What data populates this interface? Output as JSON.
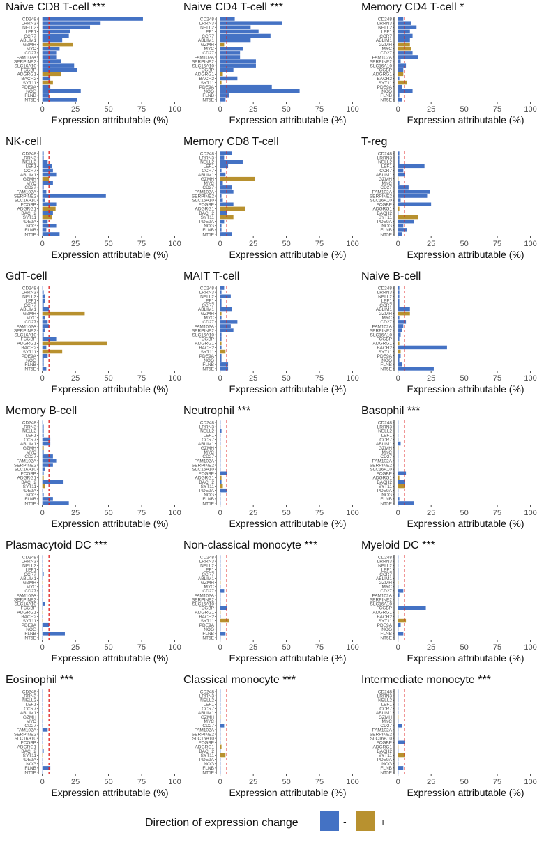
{
  "chart_data": {
    "type": "bar",
    "orientation": "horizontal",
    "genes": [
      "CD248",
      "LRRN3",
      "NELL2",
      "LEF1",
      "CCR7",
      "ABLIM1",
      "GZMH",
      "MYC",
      "CD27",
      "FAM102A",
      "SERPINE2",
      "SLC16A10",
      "FCGBP",
      "ADGRG1",
      "BACH2",
      "SYT11",
      "PDE9A",
      "NOG",
      "FLNB",
      "NT5E"
    ],
    "xlabel": "Expression attributable (%)",
    "xticks": [
      0,
      25,
      50,
      75,
      100
    ],
    "xlim": [
      -3,
      105
    ],
    "reference_line": 5,
    "legend": {
      "title": "Direction of expression change",
      "entries": [
        {
          "label": "-",
          "color": "#4472C4"
        },
        {
          "label": "+",
          "color": "#B8912F"
        }
      ]
    },
    "colors": {
      "neg": "#4472C4",
      "pos": "#B8912F",
      "reference": "#E01E1E",
      "axis": "#222222"
    },
    "panels": [
      {
        "title": "Naive CD8 T-cell ***",
        "values": [
          76,
          44,
          36,
          21,
          20,
          15,
          23,
          13,
          11,
          11,
          14,
          24,
          26,
          14,
          6,
          8,
          6,
          29,
          5,
          26
        ],
        "dirs": [
          "-",
          "-",
          "-",
          "-",
          "-",
          "-",
          "+",
          "-",
          "-",
          "-",
          "-",
          "-",
          "-",
          "+",
          "-",
          "+",
          "-",
          "-",
          "-",
          "-"
        ]
      },
      {
        "title": "Naive CD4 T-cell ***",
        "values": [
          11,
          47,
          23,
          29,
          38,
          23,
          3,
          17,
          15,
          15,
          27,
          27,
          10,
          2,
          13,
          1,
          39,
          60,
          7,
          4
        ],
        "dirs": [
          "-",
          "-",
          "-",
          "-",
          "-",
          "-",
          "+",
          "-",
          "-",
          "-",
          "-",
          "-",
          "-",
          "+",
          "-",
          "+",
          "-",
          "-",
          "-",
          "-"
        ]
      },
      {
        "title": "Memory CD4 T-cell *",
        "values": [
          4,
          10,
          14,
          9,
          11,
          9,
          9,
          10,
          11,
          15,
          2,
          6,
          4,
          4,
          1,
          7,
          3,
          11,
          1,
          3
        ],
        "dirs": [
          "-",
          "-",
          "-",
          "-",
          "-",
          "-",
          "+",
          "+",
          "-",
          "-",
          "-",
          "-",
          "-",
          "+",
          "-",
          "+",
          "-",
          "-",
          "-",
          "-"
        ]
      },
      {
        "title": "NK-cell",
        "values": [
          1,
          1,
          4,
          7,
          8,
          11,
          5,
          8,
          1,
          3,
          48,
          2,
          11,
          10,
          8,
          7,
          4,
          11,
          3,
          13
        ],
        "dirs": [
          "-",
          "-",
          "-",
          "-",
          "-",
          "-",
          "+",
          "-",
          "-",
          "-",
          "-",
          "-",
          "-",
          "+",
          "-",
          "+",
          "-",
          "-",
          "-",
          "-"
        ]
      },
      {
        "title": "Memory CD8 T-cell",
        "values": [
          9,
          3,
          17,
          6,
          1,
          4,
          26,
          2,
          9,
          10,
          1,
          2,
          10,
          19,
          5,
          10,
          3,
          1,
          1,
          9
        ],
        "dirs": [
          "-",
          "-",
          "-",
          "-",
          "-",
          "-",
          "+",
          "-",
          "-",
          "-",
          "-",
          "-",
          "-",
          "+",
          "-",
          "+",
          "-",
          "-",
          "-",
          "-"
        ]
      },
      {
        "title": "T-reg",
        "values": [
          1,
          1,
          1,
          20,
          4,
          5,
          0,
          1,
          8,
          24,
          22,
          2,
          25,
          1,
          0,
          15,
          12,
          4,
          7,
          3
        ],
        "dirs": [
          "-",
          "-",
          "-",
          "-",
          "-",
          "-",
          "+",
          "-",
          "-",
          "-",
          "-",
          "-",
          "-",
          "+",
          "-",
          "+",
          "-",
          "-",
          "-",
          "-"
        ]
      },
      {
        "title": "GdT-cell",
        "values": [
          0,
          1,
          2,
          2,
          1,
          5,
          32,
          2,
          4,
          5,
          2,
          1,
          11,
          49,
          3,
          15,
          4,
          1,
          1,
          3
        ],
        "dirs": [
          "-",
          "-",
          "-",
          "-",
          "-",
          "-",
          "+",
          "-",
          "-",
          "-",
          "-",
          "-",
          "-",
          "+",
          "-",
          "+",
          "-",
          "-",
          "-",
          "-"
        ]
      },
      {
        "title": "MAIT T-cell",
        "values": [
          3,
          1,
          8,
          1,
          1,
          9,
          1,
          1,
          13,
          8,
          10,
          1,
          1,
          1,
          1,
          4,
          1,
          1,
          6,
          6
        ],
        "dirs": [
          "-",
          "-",
          "-",
          "-",
          "-",
          "-",
          "+",
          "-",
          "-",
          "-",
          "-",
          "-",
          "-",
          "+",
          "-",
          "+",
          "-",
          "-",
          "-",
          "-"
        ]
      },
      {
        "title": "Naive B-cell",
        "values": [
          1,
          1,
          1,
          1,
          1,
          9,
          9,
          1,
          6,
          4,
          3,
          2,
          1,
          1,
          37,
          2,
          2,
          1,
          3,
          27
        ],
        "dirs": [
          "-",
          "-",
          "-",
          "-",
          "-",
          "-",
          "+",
          "-",
          "-",
          "-",
          "-",
          "-",
          "-",
          "+",
          "-",
          "+",
          "-",
          "-",
          "-",
          "-"
        ]
      },
      {
        "title": "Memory B-cell",
        "values": [
          0,
          1,
          1,
          1,
          6,
          6,
          1,
          1,
          8,
          11,
          8,
          2,
          1,
          1,
          16,
          2,
          0,
          1,
          8,
          20
        ],
        "dirs": [
          "-",
          "-",
          "-",
          "-",
          "-",
          "-",
          "+",
          "-",
          "-",
          "-",
          "-",
          "-",
          "-",
          "+",
          "-",
          "+",
          "-",
          "-",
          "-",
          "-"
        ]
      },
      {
        "title": "Neutrophil ***",
        "values": [
          0,
          0,
          1,
          0,
          0,
          0,
          0,
          0,
          0,
          0,
          0,
          0,
          5,
          1,
          1,
          2,
          5,
          0,
          0,
          0
        ],
        "dirs": [
          "-",
          "-",
          "-",
          "-",
          "-",
          "-",
          "+",
          "-",
          "-",
          "-",
          "-",
          "-",
          "-",
          "+",
          "-",
          "+",
          "-",
          "-",
          "-",
          "-"
        ]
      },
      {
        "title": "Basophil ***",
        "values": [
          0,
          0,
          0,
          0,
          0,
          2,
          0,
          0,
          0,
          0,
          0,
          0,
          6,
          1,
          5,
          5,
          0,
          0,
          1,
          12
        ],
        "dirs": [
          "-",
          "-",
          "-",
          "-",
          "-",
          "-",
          "+",
          "-",
          "-",
          "-",
          "-",
          "-",
          "-",
          "+",
          "-",
          "+",
          "-",
          "-",
          "-",
          "-"
        ]
      },
      {
        "title": "Plasmacytoid DC ***",
        "values": [
          0,
          0,
          0,
          0,
          1,
          0,
          0,
          0,
          0,
          0,
          0,
          2,
          0,
          0,
          0,
          0,
          5,
          0,
          17,
          0
        ],
        "dirs": [
          "-",
          "-",
          "-",
          "-",
          "-",
          "-",
          "+",
          "-",
          "-",
          "-",
          "-",
          "-",
          "-",
          "+",
          "-",
          "+",
          "-",
          "-",
          "-",
          "-"
        ]
      },
      {
        "title": "Non-classical monocyte ***",
        "values": [
          0,
          0,
          0,
          0,
          0,
          0,
          0,
          0,
          3,
          0,
          0,
          0,
          5,
          0,
          0,
          7,
          0,
          0,
          4,
          0
        ],
        "dirs": [
          "-",
          "-",
          "-",
          "-",
          "-",
          "-",
          "+",
          "-",
          "-",
          "-",
          "-",
          "-",
          "-",
          "+",
          "-",
          "+",
          "-",
          "-",
          "-",
          "-"
        ]
      },
      {
        "title": "Myeloid DC ***",
        "values": [
          0,
          0,
          0,
          0,
          0,
          0,
          0,
          0,
          4,
          1,
          0,
          0,
          21,
          0,
          0,
          6,
          2,
          0,
          4,
          0
        ],
        "dirs": [
          "-",
          "-",
          "-",
          "-",
          "-",
          "-",
          "+",
          "-",
          "-",
          "-",
          "-",
          "-",
          "-",
          "+",
          "-",
          "+",
          "-",
          "-",
          "-",
          "-"
        ]
      },
      {
        "title": "Eosinophil ***",
        "values": [
          0,
          0,
          0,
          0,
          0,
          0,
          0,
          0,
          0,
          4,
          0,
          0,
          0,
          0,
          1,
          0,
          0,
          0,
          6,
          0
        ],
        "dirs": [
          "-",
          "-",
          "-",
          "-",
          "-",
          "-",
          "+",
          "-",
          "-",
          "-",
          "-",
          "-",
          "-",
          "+",
          "-",
          "+",
          "-",
          "-",
          "-",
          "-"
        ]
      },
      {
        "title": "Classical monocyte ***",
        "values": [
          0,
          0,
          0,
          0,
          0,
          0,
          0,
          0,
          3,
          0,
          0,
          0,
          0,
          1,
          0,
          4,
          0,
          0,
          0,
          0
        ],
        "dirs": [
          "-",
          "-",
          "-",
          "-",
          "-",
          "-",
          "+",
          "-",
          "-",
          "-",
          "-",
          "-",
          "-",
          "+",
          "-",
          "+",
          "-",
          "-",
          "-",
          "-"
        ]
      },
      {
        "title": "Intermediate monocyte ***",
        "values": [
          0,
          0,
          0,
          0,
          0,
          0,
          0,
          0,
          3,
          0,
          0,
          0,
          5,
          0,
          0,
          5,
          0,
          0,
          4,
          0
        ],
        "dirs": [
          "-",
          "-",
          "-",
          "-",
          "-",
          "-",
          "+",
          "-",
          "-",
          "-",
          "-",
          "-",
          "-",
          "+",
          "-",
          "+",
          "-",
          "-",
          "-",
          "-"
        ]
      }
    ]
  }
}
